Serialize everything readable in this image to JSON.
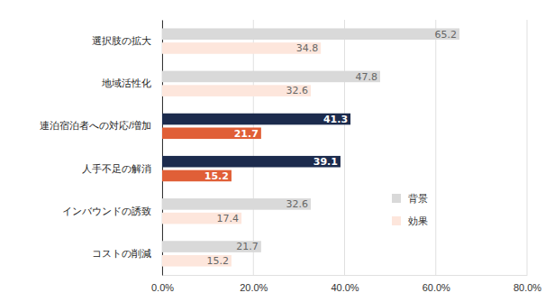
{
  "chart_data": {
    "type": "bar",
    "orientation": "horizontal",
    "categories": [
      "選択肢の拡大",
      "地域活性化",
      "連泊宿泊者への対応/増加",
      "人手不足の解消",
      "インバウンドの誘致",
      "コストの削減"
    ],
    "series": [
      {
        "name": "背景",
        "color": "#d9d9d9",
        "colors": [
          "#d9d9d9",
          "#d9d9d9",
          "#1c2b4d",
          "#1c2b4d",
          "#d9d9d9",
          "#d9d9d9"
        ],
        "values": [
          65.2,
          47.8,
          41.3,
          39.1,
          32.6,
          21.7
        ]
      },
      {
        "name": "効果",
        "color": "#fde6dc",
        "colors": [
          "#fde6dc",
          "#fde6dc",
          "#e05f37",
          "#e05f37",
          "#fde6dc",
          "#fde6dc"
        ],
        "values": [
          34.8,
          32.6,
          21.7,
          15.2,
          17.4,
          15.2
        ]
      }
    ],
    "xlim": [
      0,
      80
    ],
    "xticks": [
      {
        "value": 0,
        "label": "0.0%"
      },
      {
        "value": 20,
        "label": "20.0%"
      },
      {
        "value": 40,
        "label": "40.0%"
      },
      {
        "value": 60,
        "label": "60.0%"
      },
      {
        "value": 80,
        "label": "80.0%"
      }
    ],
    "grid": true,
    "data_labels": true,
    "legend": "lower right"
  }
}
